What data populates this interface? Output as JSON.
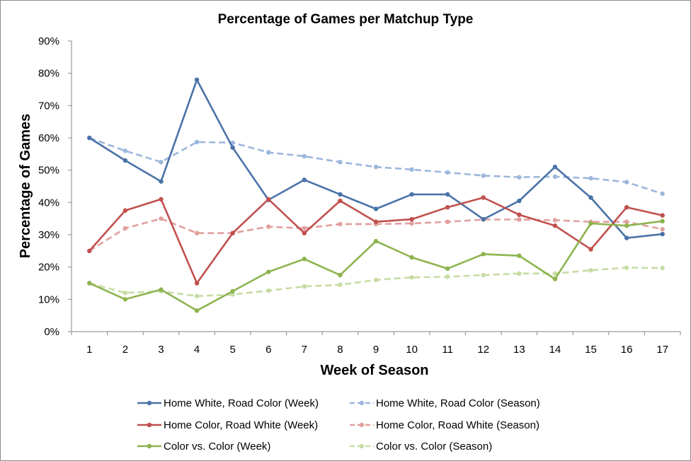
{
  "chart_data": {
    "type": "line",
    "title": "Percentage of Games per Matchup Type",
    "xlabel": "Week of Season",
    "ylabel": "Percentage of Games",
    "x": [
      1,
      2,
      3,
      4,
      5,
      6,
      7,
      8,
      9,
      10,
      11,
      12,
      13,
      14,
      15,
      16,
      17
    ],
    "xlim": [
      0.5,
      17.5
    ],
    "ylim": [
      0,
      90
    ],
    "y_ticks": [
      "0%",
      "10%",
      "20%",
      "30%",
      "40%",
      "50%",
      "60%",
      "70%",
      "80%",
      "90%"
    ],
    "grid": false,
    "legend_position": "bottom",
    "series": [
      {
        "name": "Home White, Road Color (Week)",
        "color": "#4a72a8",
        "style": "solid",
        "values": [
          60.0,
          53.0,
          46.5,
          78.0,
          57.0,
          40.8,
          47.0,
          42.5,
          38.0,
          42.5,
          42.5,
          34.8,
          40.5,
          51.0,
          41.5,
          29.0,
          30.2
        ]
      },
      {
        "name": "Home White, Road Color (Season)",
        "color": "#9db7db",
        "style": "dashed",
        "values": [
          60.0,
          56.0,
          52.5,
          58.7,
          58.5,
          55.5,
          54.3,
          52.5,
          51.0,
          50.2,
          49.3,
          48.3,
          47.8,
          48.0,
          47.5,
          46.3,
          42.7
        ]
      },
      {
        "name": "Home Color, Road White (Week)",
        "color": "#c0504d",
        "style": "solid",
        "values": [
          25.0,
          37.5,
          41.0,
          15.0,
          30.5,
          41.0,
          30.5,
          40.5,
          34.0,
          34.8,
          38.5,
          41.5,
          36.2,
          32.8,
          25.5,
          38.5,
          36.0
        ]
      },
      {
        "name": "Home Color, Road White (Season)",
        "color": "#e0a09e",
        "style": "dashed",
        "values": [
          25.0,
          32.0,
          35.0,
          30.5,
          30.5,
          32.5,
          32.0,
          33.3,
          33.3,
          33.5,
          34.0,
          34.7,
          34.7,
          34.5,
          34.0,
          34.0,
          31.7
        ]
      },
      {
        "name": "Color vs. Color (Week)",
        "color": "#8db44e",
        "style": "solid",
        "values": [
          15.0,
          10.0,
          13.0,
          6.5,
          12.5,
          18.5,
          22.5,
          17.5,
          28.0,
          23.0,
          19.5,
          24.0,
          23.5,
          16.3,
          33.5,
          32.8,
          34.2
        ]
      },
      {
        "name": "Color vs. Color (Season)",
        "color": "#c6dca4",
        "style": "dashed",
        "values": [
          15.0,
          12.0,
          12.5,
          11.0,
          11.5,
          12.7,
          14.0,
          14.5,
          16.0,
          16.8,
          17.0,
          17.5,
          18.0,
          18.0,
          19.0,
          19.8,
          19.7
        ]
      }
    ]
  }
}
